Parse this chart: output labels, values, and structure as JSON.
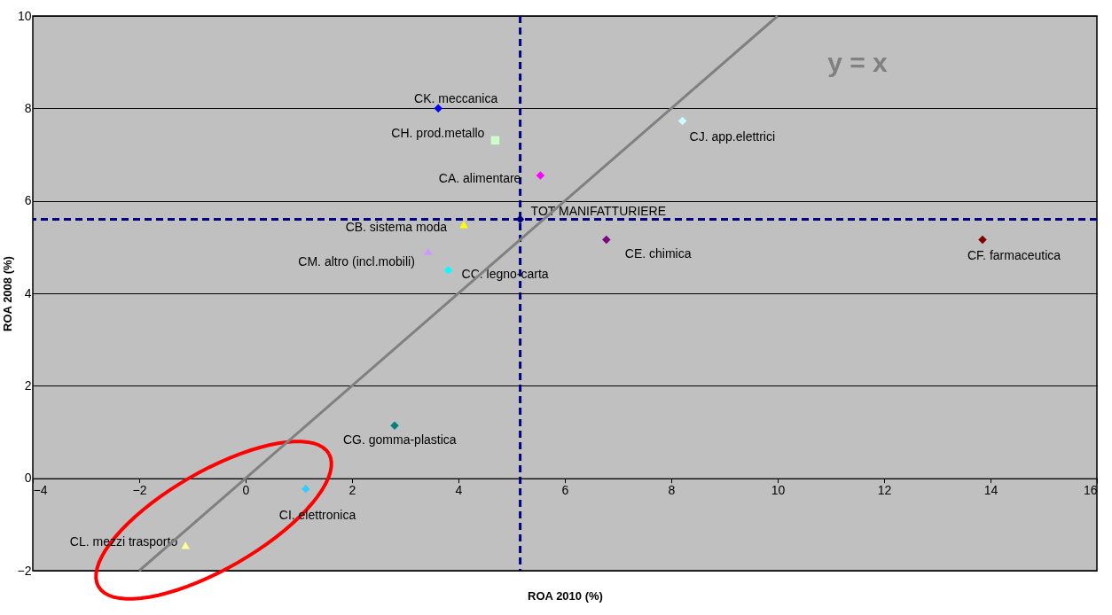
{
  "chart_data": {
    "type": "scatter",
    "xlabel": "ROA 2010 (%)",
    "ylabel": "ROA 2008 (%)",
    "xlim": [
      -4,
      16
    ],
    "ylim": [
      -2,
      10
    ],
    "xticks": [
      -4,
      -2,
      0,
      2,
      4,
      6,
      8,
      10,
      12,
      14,
      16
    ],
    "yticks": [
      -2,
      0,
      2,
      4,
      6,
      8,
      10
    ],
    "grid": "y",
    "marker": "diamond",
    "series": [
      {
        "name": "CK. meccanica",
        "color": "#0000ff",
        "x": [
          3.62
        ],
        "values": [
          8.0
        ]
      },
      {
        "name": "CH. prod.metallo",
        "color": "#ccffcc",
        "marker": "square",
        "x": [
          4.69
        ],
        "values": [
          7.31
        ]
      },
      {
        "name": "CJ. app.elettrici",
        "color": "#ccffff",
        "x": [
          8.21
        ],
        "values": [
          7.73
        ]
      },
      {
        "name": "CA. alimentare",
        "color": "#ff00ff",
        "x": [
          5.54
        ],
        "values": [
          6.55
        ]
      },
      {
        "name": "TOT MANIFATTURIERE",
        "color": "#000080",
        "x": [
          5.16
        ],
        "values": [
          5.6
        ]
      },
      {
        "name": "CB. sistema moda",
        "color": "#ffff00",
        "marker": "triangle",
        "x": [
          4.1
        ],
        "values": [
          5.49
        ]
      },
      {
        "name": "CE. chimica",
        "color": "#800080",
        "x": [
          6.78
        ],
        "values": [
          5.16
        ]
      },
      {
        "name": "CF. farmaceutica",
        "color": "#800000",
        "x": [
          13.85
        ],
        "values": [
          5.16
        ]
      },
      {
        "name": "CM. altro (incl.mobili)",
        "color": "#cc99ff",
        "marker": "triangle",
        "x": [
          3.43
        ],
        "values": [
          4.91
        ]
      },
      {
        "name": "CC. legno-carta",
        "color": "#00ffff",
        "x": [
          3.81
        ],
        "values": [
          4.5
        ]
      },
      {
        "name": "CG. gomma-plastica",
        "color": "#008080",
        "x": [
          2.8
        ],
        "values": [
          1.14
        ]
      },
      {
        "name": "CI. elettronica",
        "color": "#33ccff",
        "x": [
          1.13
        ],
        "values": [
          -0.23
        ]
      },
      {
        "name": "CL. mezzi trasporto",
        "color": "#ffff99",
        "marker": "triangle",
        "x": [
          -1.13
        ],
        "values": [
          -1.45
        ]
      },
      {
        "name": "y = x",
        "type": "line",
        "color": "#808080",
        "marker": "none",
        "x": [
          -2,
          10
        ],
        "values": [
          -2,
          10
        ]
      }
    ],
    "ref_lines": [
      {
        "axis": "x",
        "value": 5.16,
        "color": "#000080",
        "line_style": "dashed"
      },
      {
        "axis": "y",
        "value": 5.6,
        "color": "#000080",
        "line_style": "dashed"
      }
    ]
  }
}
